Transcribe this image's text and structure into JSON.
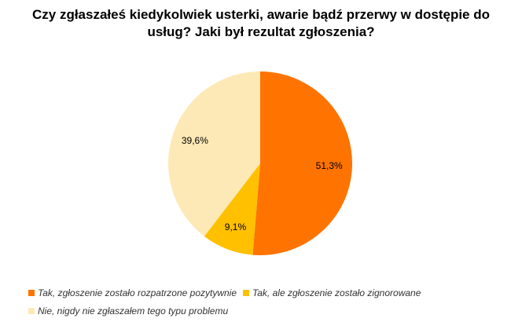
{
  "chart_data": {
    "type": "pie",
    "title": "Czy zgłaszałeś kiedykolwiek usterki, awarie bądź przerwy w dostępie do usług? Jaki był rezultat zgłoszenia?",
    "categories": [
      "Tak, zgłoszenie zostało rozpatrzone pozytywnie",
      "Tak, ale zgłoszenie zostało zignorowane",
      "Nie, nigdy nie zgłaszałem tego typu problemu"
    ],
    "values": [
      51.3,
      9.1,
      39.6
    ],
    "value_labels": [
      "51,3%",
      "9,1%",
      "39,6%"
    ],
    "colors": [
      "#ff7300",
      "#ffc000",
      "#fde9b5"
    ]
  }
}
